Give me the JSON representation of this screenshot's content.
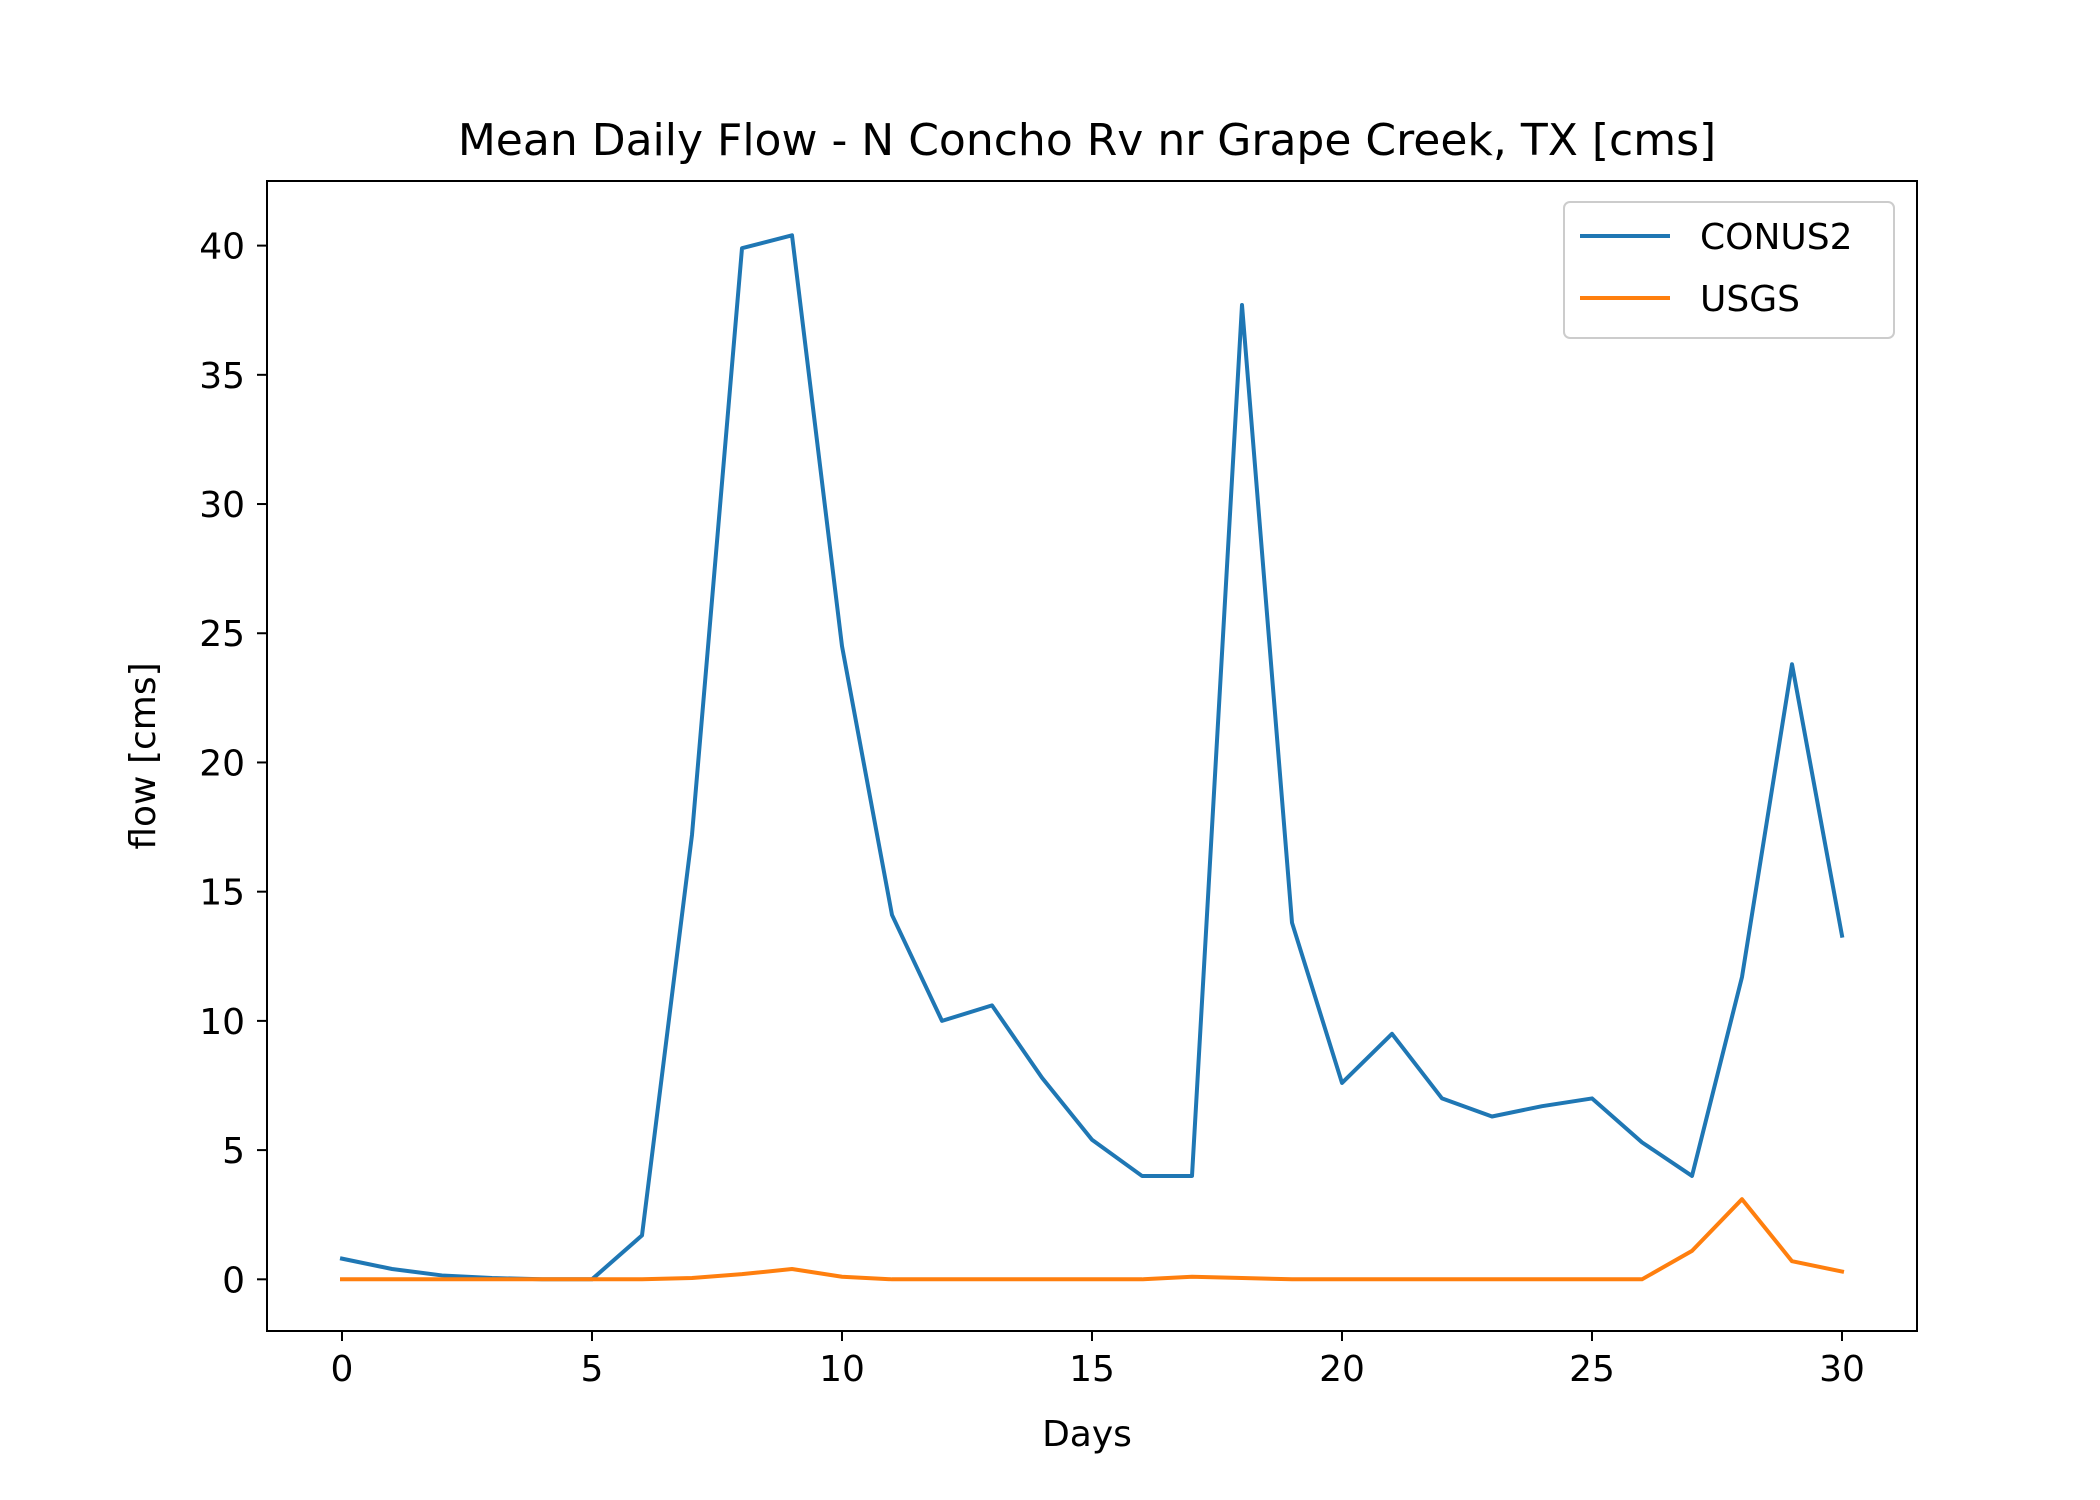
{
  "chart_data": {
    "type": "line",
    "title": "Mean Daily Flow - N Concho Rv nr Grape Creek, TX [cms]",
    "xlabel": "Days",
    "ylabel": "flow [cms]",
    "xlim": [
      -1.5,
      31.5
    ],
    "ylim": [
      -2.0,
      42.5
    ],
    "xticks": [
      0,
      5,
      10,
      15,
      20,
      25,
      30
    ],
    "yticks": [
      0,
      5,
      10,
      15,
      20,
      25,
      30,
      35,
      40
    ],
    "grid": false,
    "legend_position": "top-right",
    "x": [
      0,
      1,
      2,
      3,
      4,
      5,
      6,
      7,
      8,
      9,
      10,
      11,
      12,
      13,
      14,
      15,
      16,
      17,
      18,
      19,
      20,
      21,
      22,
      23,
      24,
      25,
      26,
      27,
      28,
      29,
      30
    ],
    "series": [
      {
        "name": "CONUS2",
        "color": "#1f77b4",
        "values": [
          0.8,
          0.4,
          0.15,
          0.05,
          0.0,
          0.0,
          1.7,
          17.2,
          39.9,
          40.4,
          24.5,
          14.1,
          10.0,
          10.6,
          7.8,
          5.4,
          4.0,
          4.0,
          37.7,
          13.8,
          7.6,
          9.5,
          7.0,
          6.3,
          6.7,
          7.0,
          5.3,
          4.0,
          11.7,
          23.8,
          13.3
        ]
      },
      {
        "name": "USGS",
        "color": "#ff7f0e",
        "values": [
          0.0,
          0.0,
          0.0,
          0.0,
          0.0,
          0.0,
          0.0,
          0.05,
          0.2,
          0.4,
          0.1,
          0.0,
          0.0,
          0.0,
          0.0,
          0.0,
          0.0,
          0.1,
          0.05,
          0.0,
          0.0,
          0.0,
          0.0,
          0.0,
          0.0,
          0.0,
          0.0,
          1.1,
          3.1,
          0.7,
          0.3
        ]
      }
    ]
  }
}
